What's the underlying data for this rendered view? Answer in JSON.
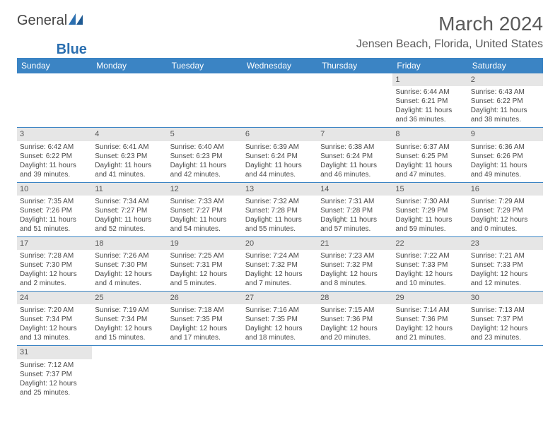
{
  "logo": {
    "word1": "General",
    "word2": "Blue"
  },
  "title": "March 2024",
  "location": "Jensen Beach, Florida, United States",
  "colors": {
    "header_bg": "#3b84c4",
    "header_text": "#ffffff",
    "daynum_bg": "#e6e6e6",
    "text": "#4a4a4a",
    "row_border": "#3b84c4",
    "logo_blue": "#2b6fb0"
  },
  "day_headers": [
    "Sunday",
    "Monday",
    "Tuesday",
    "Wednesday",
    "Thursday",
    "Friday",
    "Saturday"
  ],
  "weeks": [
    [
      {
        "n": "",
        "sr": "",
        "ss": "",
        "d1": "",
        "d2": ""
      },
      {
        "n": "",
        "sr": "",
        "ss": "",
        "d1": "",
        "d2": ""
      },
      {
        "n": "",
        "sr": "",
        "ss": "",
        "d1": "",
        "d2": ""
      },
      {
        "n": "",
        "sr": "",
        "ss": "",
        "d1": "",
        "d2": ""
      },
      {
        "n": "",
        "sr": "",
        "ss": "",
        "d1": "",
        "d2": ""
      },
      {
        "n": "1",
        "sr": "Sunrise: 6:44 AM",
        "ss": "Sunset: 6:21 PM",
        "d1": "Daylight: 11 hours",
        "d2": "and 36 minutes."
      },
      {
        "n": "2",
        "sr": "Sunrise: 6:43 AM",
        "ss": "Sunset: 6:22 PM",
        "d1": "Daylight: 11 hours",
        "d2": "and 38 minutes."
      }
    ],
    [
      {
        "n": "3",
        "sr": "Sunrise: 6:42 AM",
        "ss": "Sunset: 6:22 PM",
        "d1": "Daylight: 11 hours",
        "d2": "and 39 minutes."
      },
      {
        "n": "4",
        "sr": "Sunrise: 6:41 AM",
        "ss": "Sunset: 6:23 PM",
        "d1": "Daylight: 11 hours",
        "d2": "and 41 minutes."
      },
      {
        "n": "5",
        "sr": "Sunrise: 6:40 AM",
        "ss": "Sunset: 6:23 PM",
        "d1": "Daylight: 11 hours",
        "d2": "and 42 minutes."
      },
      {
        "n": "6",
        "sr": "Sunrise: 6:39 AM",
        "ss": "Sunset: 6:24 PM",
        "d1": "Daylight: 11 hours",
        "d2": "and 44 minutes."
      },
      {
        "n": "7",
        "sr": "Sunrise: 6:38 AM",
        "ss": "Sunset: 6:24 PM",
        "d1": "Daylight: 11 hours",
        "d2": "and 46 minutes."
      },
      {
        "n": "8",
        "sr": "Sunrise: 6:37 AM",
        "ss": "Sunset: 6:25 PM",
        "d1": "Daylight: 11 hours",
        "d2": "and 47 minutes."
      },
      {
        "n": "9",
        "sr": "Sunrise: 6:36 AM",
        "ss": "Sunset: 6:26 PM",
        "d1": "Daylight: 11 hours",
        "d2": "and 49 minutes."
      }
    ],
    [
      {
        "n": "10",
        "sr": "Sunrise: 7:35 AM",
        "ss": "Sunset: 7:26 PM",
        "d1": "Daylight: 11 hours",
        "d2": "and 51 minutes."
      },
      {
        "n": "11",
        "sr": "Sunrise: 7:34 AM",
        "ss": "Sunset: 7:27 PM",
        "d1": "Daylight: 11 hours",
        "d2": "and 52 minutes."
      },
      {
        "n": "12",
        "sr": "Sunrise: 7:33 AM",
        "ss": "Sunset: 7:27 PM",
        "d1": "Daylight: 11 hours",
        "d2": "and 54 minutes."
      },
      {
        "n": "13",
        "sr": "Sunrise: 7:32 AM",
        "ss": "Sunset: 7:28 PM",
        "d1": "Daylight: 11 hours",
        "d2": "and 55 minutes."
      },
      {
        "n": "14",
        "sr": "Sunrise: 7:31 AM",
        "ss": "Sunset: 7:28 PM",
        "d1": "Daylight: 11 hours",
        "d2": "and 57 minutes."
      },
      {
        "n": "15",
        "sr": "Sunrise: 7:30 AM",
        "ss": "Sunset: 7:29 PM",
        "d1": "Daylight: 11 hours",
        "d2": "and 59 minutes."
      },
      {
        "n": "16",
        "sr": "Sunrise: 7:29 AM",
        "ss": "Sunset: 7:29 PM",
        "d1": "Daylight: 12 hours",
        "d2": "and 0 minutes."
      }
    ],
    [
      {
        "n": "17",
        "sr": "Sunrise: 7:28 AM",
        "ss": "Sunset: 7:30 PM",
        "d1": "Daylight: 12 hours",
        "d2": "and 2 minutes."
      },
      {
        "n": "18",
        "sr": "Sunrise: 7:26 AM",
        "ss": "Sunset: 7:30 PM",
        "d1": "Daylight: 12 hours",
        "d2": "and 4 minutes."
      },
      {
        "n": "19",
        "sr": "Sunrise: 7:25 AM",
        "ss": "Sunset: 7:31 PM",
        "d1": "Daylight: 12 hours",
        "d2": "and 5 minutes."
      },
      {
        "n": "20",
        "sr": "Sunrise: 7:24 AM",
        "ss": "Sunset: 7:32 PM",
        "d1": "Daylight: 12 hours",
        "d2": "and 7 minutes."
      },
      {
        "n": "21",
        "sr": "Sunrise: 7:23 AM",
        "ss": "Sunset: 7:32 PM",
        "d1": "Daylight: 12 hours",
        "d2": "and 8 minutes."
      },
      {
        "n": "22",
        "sr": "Sunrise: 7:22 AM",
        "ss": "Sunset: 7:33 PM",
        "d1": "Daylight: 12 hours",
        "d2": "and 10 minutes."
      },
      {
        "n": "23",
        "sr": "Sunrise: 7:21 AM",
        "ss": "Sunset: 7:33 PM",
        "d1": "Daylight: 12 hours",
        "d2": "and 12 minutes."
      }
    ],
    [
      {
        "n": "24",
        "sr": "Sunrise: 7:20 AM",
        "ss": "Sunset: 7:34 PM",
        "d1": "Daylight: 12 hours",
        "d2": "and 13 minutes."
      },
      {
        "n": "25",
        "sr": "Sunrise: 7:19 AM",
        "ss": "Sunset: 7:34 PM",
        "d1": "Daylight: 12 hours",
        "d2": "and 15 minutes."
      },
      {
        "n": "26",
        "sr": "Sunrise: 7:18 AM",
        "ss": "Sunset: 7:35 PM",
        "d1": "Daylight: 12 hours",
        "d2": "and 17 minutes."
      },
      {
        "n": "27",
        "sr": "Sunrise: 7:16 AM",
        "ss": "Sunset: 7:35 PM",
        "d1": "Daylight: 12 hours",
        "d2": "and 18 minutes."
      },
      {
        "n": "28",
        "sr": "Sunrise: 7:15 AM",
        "ss": "Sunset: 7:36 PM",
        "d1": "Daylight: 12 hours",
        "d2": "and 20 minutes."
      },
      {
        "n": "29",
        "sr": "Sunrise: 7:14 AM",
        "ss": "Sunset: 7:36 PM",
        "d1": "Daylight: 12 hours",
        "d2": "and 21 minutes."
      },
      {
        "n": "30",
        "sr": "Sunrise: 7:13 AM",
        "ss": "Sunset: 7:37 PM",
        "d1": "Daylight: 12 hours",
        "d2": "and 23 minutes."
      }
    ],
    [
      {
        "n": "31",
        "sr": "Sunrise: 7:12 AM",
        "ss": "Sunset: 7:37 PM",
        "d1": "Daylight: 12 hours",
        "d2": "and 25 minutes."
      },
      {
        "n": "",
        "sr": "",
        "ss": "",
        "d1": "",
        "d2": ""
      },
      {
        "n": "",
        "sr": "",
        "ss": "",
        "d1": "",
        "d2": ""
      },
      {
        "n": "",
        "sr": "",
        "ss": "",
        "d1": "",
        "d2": ""
      },
      {
        "n": "",
        "sr": "",
        "ss": "",
        "d1": "",
        "d2": ""
      },
      {
        "n": "",
        "sr": "",
        "ss": "",
        "d1": "",
        "d2": ""
      },
      {
        "n": "",
        "sr": "",
        "ss": "",
        "d1": "",
        "d2": ""
      }
    ]
  ]
}
